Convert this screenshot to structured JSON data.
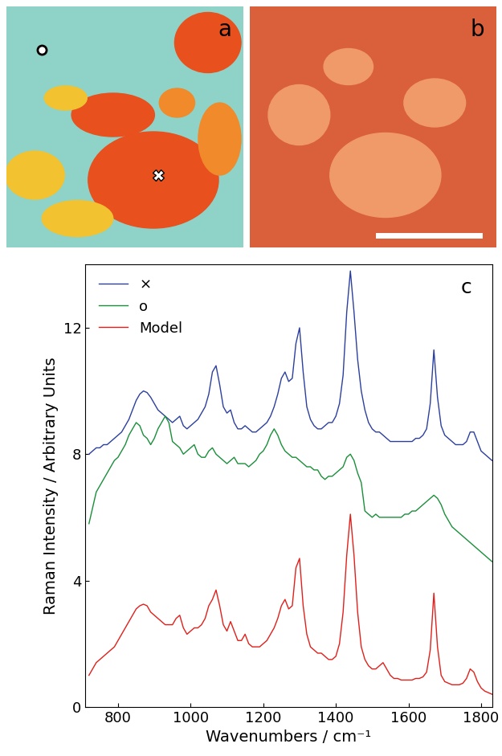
{
  "images": [
    {
      "label": "a"
    },
    {
      "label": "b"
    }
  ],
  "chart_data": {
    "type": "line",
    "annotations": [
      "c"
    ],
    "xlabel": "Wavenumbers / cm⁻¹",
    "ylabel": "Raman Intensity / Arbitrary Units",
    "xlim": [
      710,
      1830
    ],
    "xticks": [
      800,
      1000,
      1200,
      1400,
      1600,
      1800
    ],
    "ylim": [
      0,
      14
    ],
    "yticks": [
      0,
      4,
      8,
      12
    ],
    "grid": false,
    "legend": "upper left",
    "x": [
      720,
      730,
      740,
      750,
      760,
      770,
      780,
      790,
      800,
      810,
      820,
      830,
      840,
      850,
      860,
      870,
      880,
      890,
      900,
      910,
      920,
      930,
      940,
      950,
      960,
      970,
      980,
      990,
      1000,
      1010,
      1020,
      1030,
      1040,
      1050,
      1060,
      1070,
      1080,
      1090,
      1100,
      1110,
      1120,
      1130,
      1140,
      1150,
      1160,
      1170,
      1180,
      1190,
      1200,
      1210,
      1220,
      1230,
      1240,
      1250,
      1260,
      1270,
      1280,
      1290,
      1300,
      1310,
      1320,
      1330,
      1340,
      1350,
      1360,
      1370,
      1380,
      1390,
      1400,
      1410,
      1420,
      1430,
      1440,
      1450,
      1460,
      1470,
      1480,
      1490,
      1500,
      1510,
      1520,
      1530,
      1540,
      1550,
      1560,
      1570,
      1580,
      1590,
      1600,
      1610,
      1620,
      1630,
      1640,
      1650,
      1660,
      1670,
      1680,
      1690,
      1700,
      1710,
      1720,
      1730,
      1740,
      1750,
      1760,
      1770,
      1780,
      1790,
      1800,
      1810,
      1820,
      1830
    ],
    "series": [
      {
        "name": "×",
        "color": "#2b3f9e",
        "values": [
          8.0,
          8.1,
          8.2,
          8.2,
          8.3,
          8.3,
          8.4,
          8.5,
          8.6,
          8.7,
          8.9,
          9.1,
          9.4,
          9.7,
          9.9,
          10.0,
          9.95,
          9.8,
          9.6,
          9.4,
          9.3,
          9.2,
          9.1,
          9.0,
          9.1,
          9.2,
          8.9,
          8.8,
          8.9,
          9.0,
          9.1,
          9.3,
          9.5,
          9.9,
          10.6,
          10.8,
          10.2,
          9.5,
          9.3,
          9.4,
          9.0,
          8.8,
          8.8,
          8.9,
          8.8,
          8.7,
          8.7,
          8.8,
          8.9,
          9.0,
          9.2,
          9.5,
          9.9,
          10.4,
          10.6,
          10.3,
          10.4,
          11.5,
          12.0,
          10.6,
          9.5,
          9.1,
          8.9,
          8.8,
          8.8,
          8.9,
          9.0,
          9.0,
          9.2,
          9.6,
          10.5,
          12.5,
          13.8,
          12.5,
          11.0,
          10.0,
          9.4,
          9.0,
          8.8,
          8.7,
          8.7,
          8.6,
          8.5,
          8.4,
          8.4,
          8.4,
          8.4,
          8.4,
          8.4,
          8.4,
          8.5,
          8.5,
          8.6,
          8.8,
          9.6,
          11.3,
          9.8,
          8.9,
          8.6,
          8.5,
          8.4,
          8.3,
          8.3,
          8.3,
          8.4,
          8.7,
          8.7,
          8.4,
          8.1,
          8.0,
          7.9,
          7.8
        ]
      },
      {
        "name": "o",
        "color": "#1a8f3a",
        "values": [
          5.8,
          6.3,
          6.8,
          7.0,
          7.2,
          7.4,
          7.6,
          7.8,
          7.9,
          8.1,
          8.3,
          8.6,
          8.8,
          9.0,
          8.9,
          8.6,
          8.5,
          8.3,
          8.5,
          8.8,
          9.0,
          9.2,
          9.0,
          8.4,
          8.3,
          8.2,
          8.0,
          8.1,
          8.2,
          8.3,
          8.0,
          7.9,
          7.9,
          8.1,
          8.2,
          8.0,
          7.9,
          7.8,
          7.7,
          7.8,
          7.9,
          7.7,
          7.7,
          7.7,
          7.6,
          7.7,
          7.8,
          8.0,
          8.1,
          8.3,
          8.6,
          8.8,
          8.6,
          8.3,
          8.1,
          8.0,
          7.9,
          7.9,
          7.8,
          7.7,
          7.6,
          7.6,
          7.5,
          7.5,
          7.3,
          7.2,
          7.3,
          7.3,
          7.4,
          7.5,
          7.6,
          7.9,
          8.0,
          7.8,
          7.4,
          7.1,
          6.2,
          6.1,
          6.0,
          6.1,
          6.0,
          6.0,
          6.0,
          6.0,
          6.0,
          6.0,
          6.0,
          6.1,
          6.1,
          6.2,
          6.2,
          6.3,
          6.4,
          6.5,
          6.6,
          6.7,
          6.6,
          6.4,
          6.1,
          5.9,
          5.7,
          5.6,
          5.5,
          5.4,
          5.3,
          5.2,
          5.1,
          5.0,
          4.9,
          4.8,
          4.7,
          4.6
        ]
      },
      {
        "name": "Model",
        "color": "#e0201b",
        "values": [
          1.0,
          1.2,
          1.4,
          1.5,
          1.6,
          1.7,
          1.8,
          1.9,
          2.1,
          2.3,
          2.5,
          2.7,
          2.9,
          3.1,
          3.2,
          3.25,
          3.2,
          3.0,
          2.9,
          2.8,
          2.7,
          2.6,
          2.6,
          2.6,
          2.8,
          2.9,
          2.5,
          2.3,
          2.4,
          2.5,
          2.5,
          2.6,
          2.8,
          3.2,
          3.4,
          3.7,
          3.2,
          2.6,
          2.4,
          2.7,
          2.4,
          2.1,
          2.1,
          2.3,
          2.0,
          1.9,
          1.9,
          1.9,
          2.0,
          2.1,
          2.3,
          2.5,
          2.8,
          3.2,
          3.4,
          3.1,
          3.2,
          4.4,
          4.7,
          3.2,
          2.3,
          1.9,
          1.8,
          1.7,
          1.7,
          1.6,
          1.5,
          1.5,
          1.6,
          2.0,
          3.0,
          4.8,
          6.1,
          4.8,
          3.0,
          1.9,
          1.5,
          1.3,
          1.2,
          1.2,
          1.3,
          1.4,
          1.2,
          1.0,
          0.9,
          0.9,
          0.85,
          0.85,
          0.85,
          0.85,
          0.9,
          0.9,
          0.95,
          1.1,
          1.8,
          3.6,
          1.9,
          1.0,
          0.8,
          0.75,
          0.7,
          0.7,
          0.7,
          0.75,
          0.9,
          1.2,
          1.1,
          0.8,
          0.6,
          0.5,
          0.45,
          0.4
        ]
      }
    ]
  }
}
